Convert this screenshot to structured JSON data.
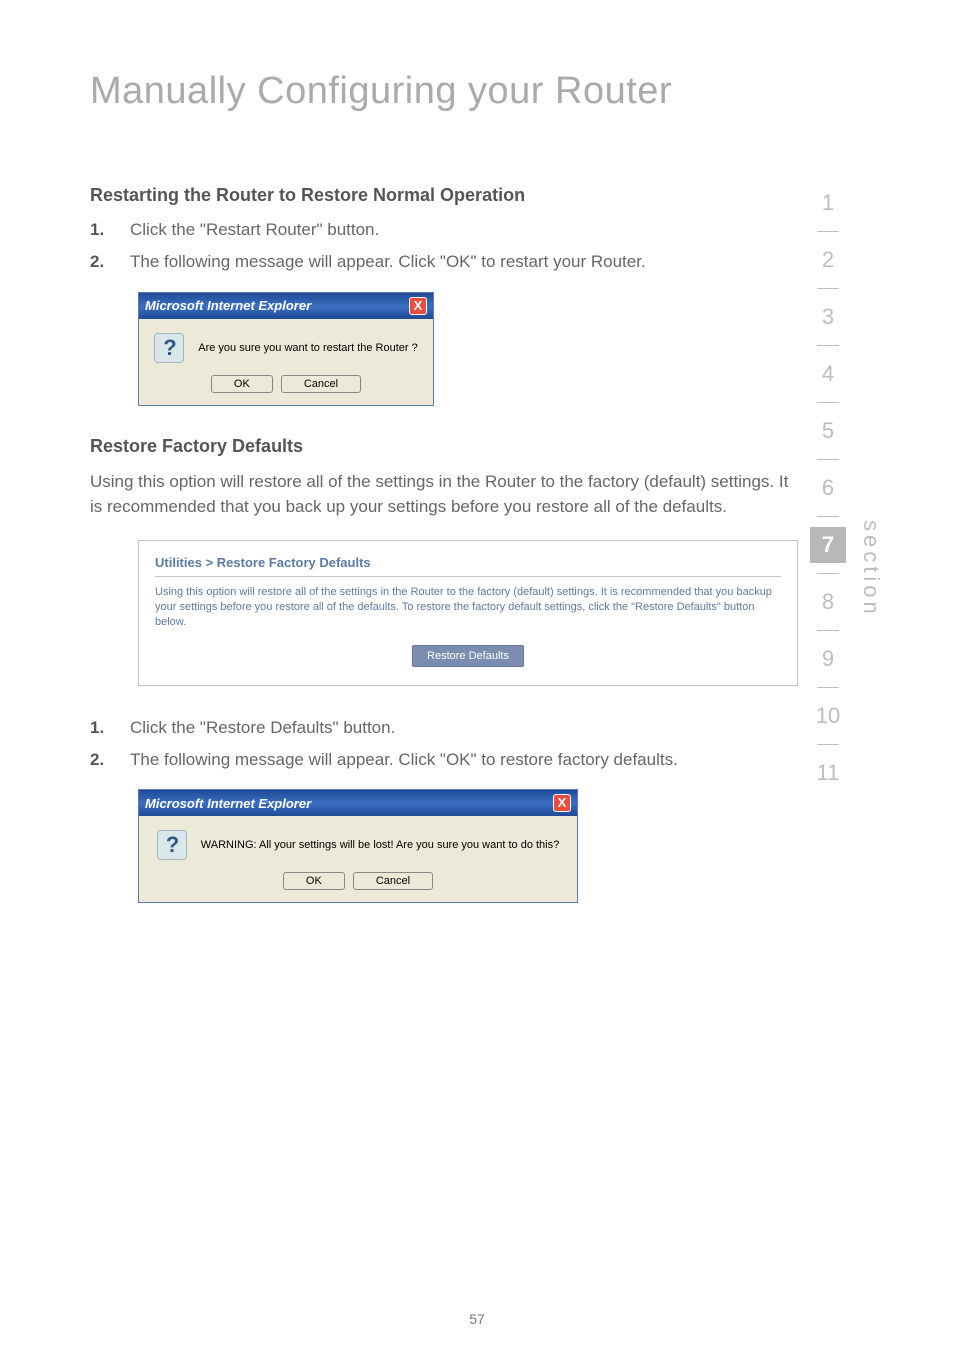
{
  "page_title": "Manually Configuring your Router",
  "section1": {
    "heading": "Restarting the Router to Restore Normal Operation",
    "step1_num": "1.",
    "step1_text": "Click the \"Restart Router\" button.",
    "step2_num": "2.",
    "step2_text": "The following message will appear. Click \"OK\" to restart your Router."
  },
  "dialog1": {
    "title": "Microsoft Internet Explorer",
    "close": "X",
    "message": "Are you sure you want to restart the Router ?",
    "ok": "OK",
    "cancel": "Cancel"
  },
  "section2": {
    "heading": "Restore Factory Defaults",
    "paragraph": "Using this option will restore all of the settings in the Router to the factory (default) settings. It is recommended that you back up your settings before you restore all of the defaults."
  },
  "utility": {
    "title": "Utilities > Restore Factory Defaults",
    "desc": "Using this option will restore all of the settings in the Router to the factory (default) settings. It is recommended that you backup your settings before you restore all of the defaults. To restore the factory default settings, click the \"Restore Defaults\" button below.",
    "button": "Restore Defaults"
  },
  "section3": {
    "step1_num": "1.",
    "step1_text": "Click the \"Restore Defaults\" button.",
    "step2_num": "2.",
    "step2_text": "The following message will appear. Click \"OK\" to restore factory defaults."
  },
  "dialog2": {
    "title": "Microsoft Internet Explorer",
    "close": "X",
    "message": "WARNING: All your settings will be lost! Are you sure you want to do this?",
    "ok": "OK",
    "cancel": "Cancel"
  },
  "sidebar": {
    "numbers": [
      "1",
      "2",
      "3",
      "4",
      "5",
      "6",
      "7",
      "8",
      "9",
      "10",
      "11"
    ],
    "active_index": 6,
    "label": "section"
  },
  "page_number": "57",
  "colors": {
    "title_gray": "#aaa",
    "text_gray": "#666",
    "heading_gray": "#555",
    "sidebar_gray": "#bdbdbd",
    "sidebar_active_bg": "#b8b8b8",
    "ie_titlebar": "#1f4a94",
    "ie_body": "#ece9d8",
    "utility_text": "#5d7ba3",
    "utility_btn_bg": "#7a8db0",
    "close_red": "#e84d3d"
  }
}
